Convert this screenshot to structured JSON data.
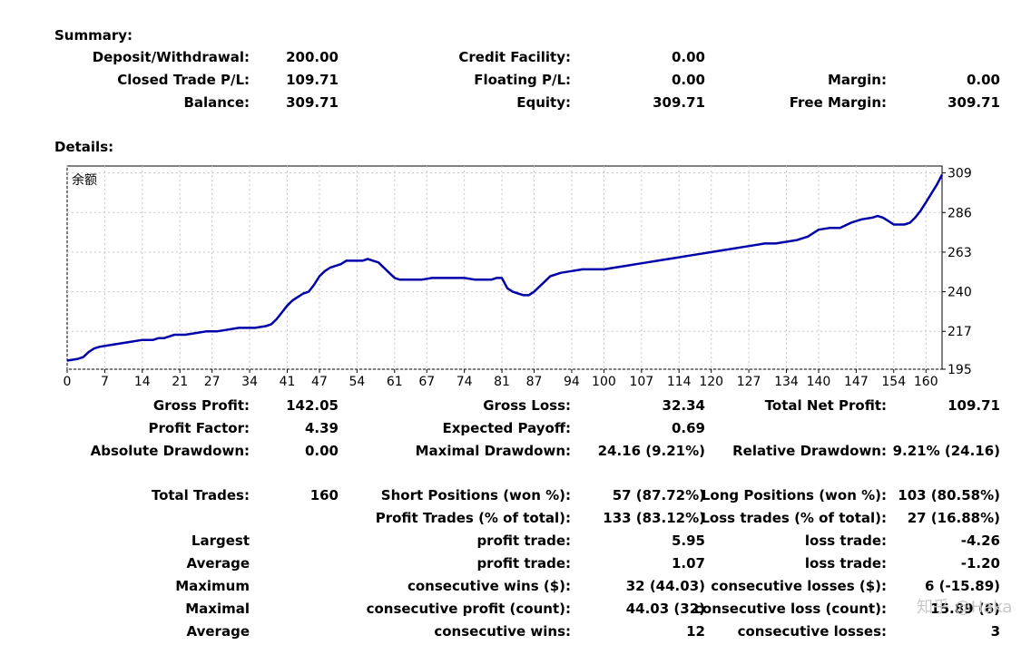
{
  "summary": {
    "title": "Summary:",
    "deposit_label": "Deposit/Withdrawal:",
    "deposit_value": "200.00",
    "credit_label": "Credit Facility:",
    "credit_value": "0.00",
    "closed_pl_label": "Closed Trade P/L:",
    "closed_pl_value": "109.71",
    "floating_pl_label": "Floating P/L:",
    "floating_pl_value": "0.00",
    "margin_label": "Margin:",
    "margin_value": "0.00",
    "balance_label": "Balance:",
    "balance_value": "309.71",
    "equity_label": "Equity:",
    "equity_value": "309.71",
    "free_margin_label": "Free Margin:",
    "free_margin_value": "309.71"
  },
  "details": {
    "title": "Details:"
  },
  "chart_data": {
    "type": "line",
    "series_label": "余额",
    "x_ticks": [
      0,
      7,
      14,
      21,
      27,
      34,
      41,
      47,
      54,
      61,
      67,
      74,
      81,
      87,
      94,
      100,
      107,
      114,
      120,
      127,
      134,
      140,
      147,
      154,
      160
    ],
    "y_ticks": [
      195,
      217,
      240,
      263,
      286,
      309
    ],
    "xlim": [
      0,
      163
    ],
    "ylim": [
      195,
      313
    ],
    "grid": true,
    "line_color": "#0000aa",
    "x": [
      0,
      2,
      3,
      4,
      5,
      6,
      8,
      10,
      12,
      14,
      16,
      17,
      18,
      20,
      22,
      24,
      26,
      28,
      30,
      32,
      33,
      35,
      37,
      38,
      39,
      40,
      41,
      42,
      43,
      44,
      45,
      46,
      47,
      48,
      49,
      50,
      51,
      52,
      53,
      54,
      55,
      56,
      57,
      58,
      59,
      60,
      61,
      62,
      64,
      66,
      68,
      70,
      72,
      74,
      76,
      78,
      79,
      80,
      81,
      82,
      83,
      84,
      85,
      86,
      87,
      88,
      89,
      90,
      92,
      94,
      96,
      98,
      100,
      102,
      104,
      106,
      108,
      110,
      112,
      114,
      116,
      118,
      120,
      122,
      124,
      126,
      128,
      130,
      132,
      134,
      136,
      138,
      140,
      142,
      144,
      146,
      148,
      150,
      151,
      152,
      153,
      154,
      155,
      156,
      157,
      158,
      159,
      160,
      161,
      162,
      163
    ],
    "y": [
      200,
      201,
      202,
      205,
      207,
      208,
      209,
      210,
      211,
      212,
      212,
      213,
      213,
      215,
      215,
      216,
      217,
      217,
      218,
      219,
      219,
      219,
      220,
      221,
      224,
      228,
      232,
      235,
      237,
      239,
      240,
      244,
      249,
      252,
      254,
      255,
      256,
      258,
      258,
      258,
      258,
      259,
      258,
      257,
      254,
      251,
      248,
      247,
      247,
      247,
      248,
      248,
      248,
      248,
      247,
      247,
      247,
      248,
      248,
      242,
      240,
      239,
      238,
      238,
      240,
      243,
      246,
      249,
      251,
      252,
      253,
      253,
      253,
      254,
      255,
      256,
      257,
      258,
      259,
      260,
      261,
      262,
      263,
      264,
      265,
      266,
      267,
      268,
      268,
      269,
      270,
      272,
      276,
      277,
      277,
      280,
      282,
      283,
      284,
      283,
      281,
      279,
      279,
      279,
      280,
      283,
      287,
      292,
      297,
      302,
      308
    ]
  },
  "stats": {
    "gross_profit_label": "Gross Profit:",
    "gross_profit_value": "142.05",
    "gross_loss_label": "Gross Loss:",
    "gross_loss_value": "32.34",
    "total_net_profit_label": "Total Net Profit:",
    "total_net_profit_value": "109.71",
    "profit_factor_label": "Profit Factor:",
    "profit_factor_value": "4.39",
    "expected_payoff_label": "Expected Payoff:",
    "expected_payoff_value": "0.69",
    "absolute_drawdown_label": "Absolute Drawdown:",
    "absolute_drawdown_value": "0.00",
    "maximal_drawdown_label": "Maximal Drawdown:",
    "maximal_drawdown_value": "24.16 (9.21%)",
    "relative_drawdown_label": "Relative Drawdown:",
    "relative_drawdown_value": "9.21% (24.16)",
    "total_trades_label": "Total Trades:",
    "total_trades_value": "160",
    "short_positions_label": "Short Positions (won %):",
    "short_positions_value": "57 (87.72%)",
    "long_positions_label": "Long Positions (won %):",
    "long_positions_value": "103 (80.58%)",
    "profit_trades_label": "Profit Trades (% of total):",
    "profit_trades_value": "133 (83.12%)",
    "loss_trades_label": "Loss trades (% of total):",
    "loss_trades_value": "27 (16.88%)",
    "largest_label": "Largest",
    "largest_profit_label": "profit trade:",
    "largest_profit_value": "5.95",
    "largest_loss_label": "loss trade:",
    "largest_loss_value": "-4.26",
    "average_label": "Average",
    "average_profit_label": "profit trade:",
    "average_profit_value": "1.07",
    "average_loss_label": "loss trade:",
    "average_loss_value": "-1.20",
    "maximum_label": "Maximum",
    "max_cons_wins_label": "consecutive wins ($):",
    "max_cons_wins_value": "32 (44.03)",
    "max_cons_losses_label": "consecutive losses ($):",
    "max_cons_losses_value": "6 (-15.89)",
    "maximal_label": "Maximal",
    "maximal_cons_profit_label": "consecutive profit (count):",
    "maximal_cons_profit_value": "44.03 (32)",
    "maximal_cons_loss_label": "consecutive loss (count):",
    "maximal_cons_loss_value": "15.89 (6)",
    "average2_label": "Average",
    "avg_cons_wins_label": "consecutive wins:",
    "avg_cons_wins_value": "12",
    "avg_cons_losses_label": "consecutive losses:",
    "avg_cons_losses_value": "3"
  },
  "watermark": "知乎 @Haka"
}
